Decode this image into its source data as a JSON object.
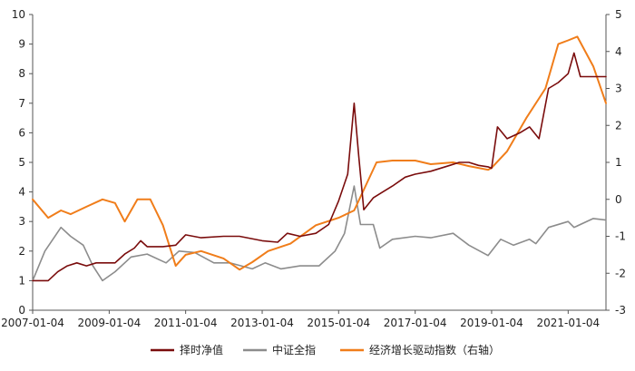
{
  "chart_data": {
    "type": "line",
    "title": "",
    "xlabel": "",
    "ylabel_left": "",
    "ylabel_right": "",
    "x_ticks": [
      "2007-01-04",
      "2009-01-04",
      "2011-01-04",
      "2013-01-04",
      "2015-01-04",
      "2017-01-04",
      "2019-01-04",
      "2021-01-04"
    ],
    "x_range": [
      "2007-01-04",
      "2021-12-31"
    ],
    "y_left": {
      "range": [
        0,
        10
      ],
      "ticks": [
        "0",
        "1",
        "2",
        "3",
        "4",
        "5",
        "6",
        "7",
        "8",
        "9",
        "10"
      ]
    },
    "y_right": {
      "range": [
        -3,
        5
      ],
      "ticks": [
        "-3",
        "-2",
        "-1",
        "0",
        "1",
        "2",
        "3",
        "4",
        "5"
      ]
    },
    "grid": false,
    "legend_position": "bottom",
    "series": [
      {
        "name": "择时净值",
        "axis": "left",
        "color": "#7a0c0c",
        "points": [
          [
            "2007-01-04",
            1.0
          ],
          [
            "2007-06-01",
            1.0
          ],
          [
            "2007-09-01",
            1.3
          ],
          [
            "2007-12-01",
            1.5
          ],
          [
            "2008-03-01",
            1.6
          ],
          [
            "2008-06-01",
            1.5
          ],
          [
            "2008-09-01",
            1.6
          ],
          [
            "2008-12-01",
            1.6
          ],
          [
            "2009-03-01",
            1.6
          ],
          [
            "2009-06-01",
            1.9
          ],
          [
            "2009-09-01",
            2.1
          ],
          [
            "2009-11-01",
            2.35
          ],
          [
            "2010-01-01",
            2.15
          ],
          [
            "2010-06-01",
            2.15
          ],
          [
            "2010-10-01",
            2.2
          ],
          [
            "2011-01-04",
            2.55
          ],
          [
            "2011-06-01",
            2.45
          ],
          [
            "2012-01-01",
            2.5
          ],
          [
            "2012-06-01",
            2.5
          ],
          [
            "2013-01-04",
            2.35
          ],
          [
            "2013-06-01",
            2.3
          ],
          [
            "2013-09-01",
            2.6
          ],
          [
            "2014-01-01",
            2.5
          ],
          [
            "2014-06-01",
            2.6
          ],
          [
            "2014-10-01",
            2.9
          ],
          [
            "2015-01-04",
            3.7
          ],
          [
            "2015-04-01",
            4.6
          ],
          [
            "2015-06-01",
            7.0
          ],
          [
            "2015-07-15",
            5.2
          ],
          [
            "2015-09-01",
            3.4
          ],
          [
            "2015-12-01",
            3.8
          ],
          [
            "2016-03-01",
            4.0
          ],
          [
            "2016-06-01",
            4.2
          ],
          [
            "2016-10-01",
            4.5
          ],
          [
            "2017-01-04",
            4.6
          ],
          [
            "2017-06-01",
            4.7
          ],
          [
            "2017-12-01",
            4.9
          ],
          [
            "2018-03-01",
            5.0
          ],
          [
            "2018-06-01",
            5.0
          ],
          [
            "2018-09-01",
            4.9
          ],
          [
            "2018-12-01",
            4.85
          ],
          [
            "2019-01-04",
            4.8
          ],
          [
            "2019-03-01",
            6.2
          ],
          [
            "2019-06-01",
            5.8
          ],
          [
            "2019-10-01",
            6.0
          ],
          [
            "2020-01-01",
            6.2
          ],
          [
            "2020-04-01",
            5.8
          ],
          [
            "2020-07-01",
            7.5
          ],
          [
            "2020-10-01",
            7.7
          ],
          [
            "2021-01-04",
            8.0
          ],
          [
            "2021-03-01",
            8.7
          ],
          [
            "2021-05-01",
            7.9
          ],
          [
            "2021-12-31",
            7.9
          ]
        ]
      },
      {
        "name": "中证全指",
        "axis": "left",
        "color": "#8c8c8c",
        "points": [
          [
            "2007-01-04",
            1.0
          ],
          [
            "2007-05-01",
            2.0
          ],
          [
            "2007-10-01",
            2.8
          ],
          [
            "2008-01-01",
            2.5
          ],
          [
            "2008-05-01",
            2.2
          ],
          [
            "2008-08-01",
            1.5
          ],
          [
            "2008-11-01",
            1.0
          ],
          [
            "2009-03-01",
            1.3
          ],
          [
            "2009-08-01",
            1.8
          ],
          [
            "2010-01-01",
            1.9
          ],
          [
            "2010-07-01",
            1.6
          ],
          [
            "2010-11-01",
            2.0
          ],
          [
            "2011-04-01",
            1.95
          ],
          [
            "2011-10-01",
            1.6
          ],
          [
            "2012-03-01",
            1.6
          ],
          [
            "2012-10-01",
            1.4
          ],
          [
            "2013-02-01",
            1.6
          ],
          [
            "2013-07-01",
            1.4
          ],
          [
            "2014-01-01",
            1.5
          ],
          [
            "2014-07-01",
            1.5
          ],
          [
            "2014-12-01",
            2.0
          ],
          [
            "2015-03-01",
            2.6
          ],
          [
            "2015-06-01",
            4.2
          ],
          [
            "2015-08-01",
            2.9
          ],
          [
            "2015-12-01",
            2.9
          ],
          [
            "2016-02-01",
            2.1
          ],
          [
            "2016-06-01",
            2.4
          ],
          [
            "2017-01-04",
            2.5
          ],
          [
            "2017-06-01",
            2.45
          ],
          [
            "2018-01-01",
            2.6
          ],
          [
            "2018-06-01",
            2.2
          ],
          [
            "2018-12-01",
            1.85
          ],
          [
            "2019-04-01",
            2.4
          ],
          [
            "2019-08-01",
            2.2
          ],
          [
            "2020-01-01",
            2.4
          ],
          [
            "2020-03-01",
            2.25
          ],
          [
            "2020-07-01",
            2.8
          ],
          [
            "2021-01-04",
            3.0
          ],
          [
            "2021-03-01",
            2.8
          ],
          [
            "2021-09-01",
            3.1
          ],
          [
            "2021-12-31",
            3.05
          ]
        ]
      },
      {
        "name": "经济增长驱动指数（右轴）",
        "axis": "right",
        "color": "#f07d1a",
        "points": [
          [
            "2007-01-04",
            0.0
          ],
          [
            "2007-06-01",
            -0.5
          ],
          [
            "2007-10-01",
            -0.3
          ],
          [
            "2008-01-01",
            -0.4
          ],
          [
            "2008-06-01",
            -0.2
          ],
          [
            "2008-11-01",
            0.0
          ],
          [
            "2009-03-01",
            -0.1
          ],
          [
            "2009-06-01",
            -0.6
          ],
          [
            "2009-10-01",
            0.0
          ],
          [
            "2010-02-01",
            0.0
          ],
          [
            "2010-06-01",
            -0.7
          ],
          [
            "2010-10-01",
            -1.8
          ],
          [
            "2011-01-04",
            -1.5
          ],
          [
            "2011-06-01",
            -1.4
          ],
          [
            "2012-01-01",
            -1.6
          ],
          [
            "2012-06-01",
            -1.9
          ],
          [
            "2012-10-01",
            -1.7
          ],
          [
            "2013-03-01",
            -1.4
          ],
          [
            "2013-10-01",
            -1.2
          ],
          [
            "2014-06-01",
            -0.7
          ],
          [
            "2015-01-04",
            -0.5
          ],
          [
            "2015-06-01",
            -0.3
          ],
          [
            "2016-01-01",
            1.0
          ],
          [
            "2016-06-01",
            1.05
          ],
          [
            "2017-01-04",
            1.05
          ],
          [
            "2017-06-01",
            0.95
          ],
          [
            "2018-01-01",
            1.0
          ],
          [
            "2018-06-01",
            0.9
          ],
          [
            "2018-12-01",
            0.8
          ],
          [
            "2019-01-04",
            0.85
          ],
          [
            "2019-06-01",
            1.3
          ],
          [
            "2019-12-01",
            2.2
          ],
          [
            "2020-06-01",
            3.0
          ],
          [
            "2020-10-01",
            4.2
          ],
          [
            "2021-01-04",
            4.3
          ],
          [
            "2021-04-01",
            4.4
          ],
          [
            "2021-09-01",
            3.6
          ],
          [
            "2021-12-31",
            2.6
          ]
        ]
      }
    ]
  }
}
